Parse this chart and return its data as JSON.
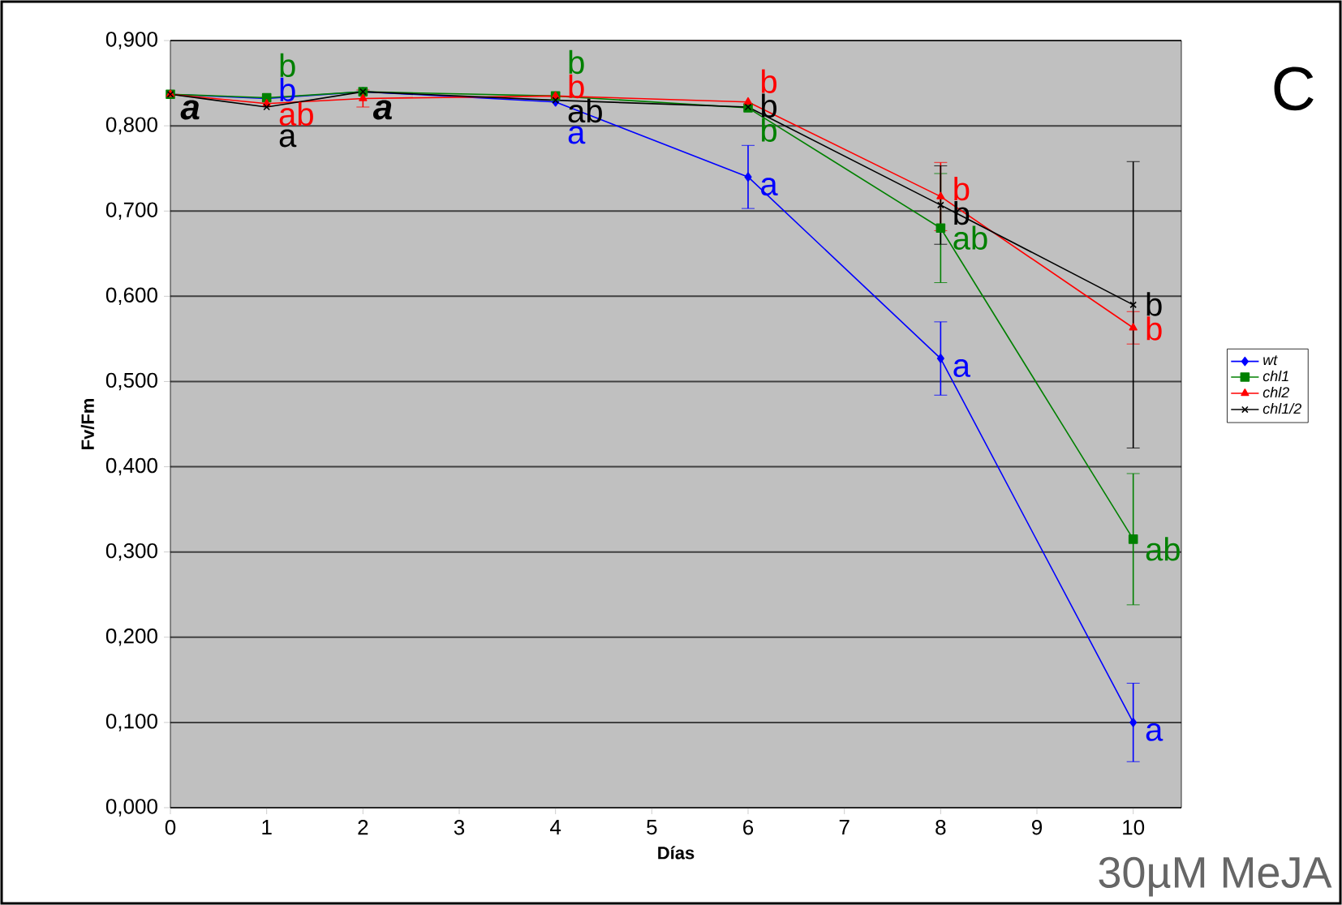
{
  "chart_data": {
    "type": "line",
    "xlabel": "Días",
    "ylabel": "Fv/Fm",
    "x": [
      0,
      1,
      2,
      4,
      6,
      8,
      10
    ],
    "xlim": [
      0,
      10.5
    ],
    "xticks": [
      0,
      1,
      2,
      3,
      4,
      5,
      6,
      7,
      8,
      9,
      10
    ],
    "ylim": [
      0,
      0.9
    ],
    "yticks": [
      {
        "value": 0,
        "label": "0,000"
      },
      {
        "value": 0.1,
        "label": "0,100"
      },
      {
        "value": 0.2,
        "label": "0,200"
      },
      {
        "value": 0.3,
        "label": "0,300"
      },
      {
        "value": 0.4,
        "label": "0,400"
      },
      {
        "value": 0.5,
        "label": "0,500"
      },
      {
        "value": 0.6,
        "label": "0,600"
      },
      {
        "value": 0.7,
        "label": "0,700"
      },
      {
        "value": 0.8,
        "label": "0,800"
      },
      {
        "value": 0.9,
        "label": "0,900"
      }
    ],
    "grid": "y",
    "legend": "right",
    "series": [
      {
        "name": "wt",
        "color": "#0000ff",
        "marker": "diamond",
        "values": [
          0.837,
          0.832,
          0.84,
          0.828,
          0.74,
          0.527,
          0.1
        ],
        "errors": [
          null,
          null,
          null,
          null,
          0.037,
          0.043,
          0.046
        ],
        "value_labels": [
          null,
          "b",
          null,
          "a",
          "a",
          "a",
          "a"
        ]
      },
      {
        "name": "chl1",
        "color": "#008000",
        "marker": "square",
        "values": [
          0.837,
          0.833,
          0.84,
          0.835,
          0.821,
          0.68,
          0.315
        ],
        "errors": [
          null,
          null,
          null,
          null,
          null,
          0.064,
          0.077
        ],
        "value_labels": [
          null,
          "b",
          null,
          "b",
          "b",
          "ab",
          "ab"
        ]
      },
      {
        "name": "chl2",
        "color": "#ff0000",
        "marker": "triangle",
        "values": [
          0.837,
          0.826,
          0.832,
          0.835,
          0.828,
          0.717,
          0.563
        ],
        "errors": [
          null,
          null,
          0.01,
          null,
          null,
          0.04,
          0.019
        ],
        "value_labels": [
          null,
          "ab",
          null,
          "b",
          "b",
          "b",
          "b"
        ]
      },
      {
        "name": "chl1/2",
        "color": "#000000",
        "marker": "cross",
        "values": [
          0.837,
          0.822,
          0.84,
          0.83,
          0.822,
          0.707,
          0.59
        ],
        "errors": [
          null,
          null,
          null,
          null,
          null,
          0.046,
          0.168
        ],
        "value_labels": [
          null,
          "a",
          null,
          "ab",
          "b",
          "b",
          "b"
        ]
      }
    ],
    "annotations": [
      {
        "text": "a",
        "x": 0,
        "y": 0.832
      },
      {
        "text": "a",
        "x": 2,
        "y": 0.832
      },
      "C",
      "30µM MeJA"
    ]
  }
}
